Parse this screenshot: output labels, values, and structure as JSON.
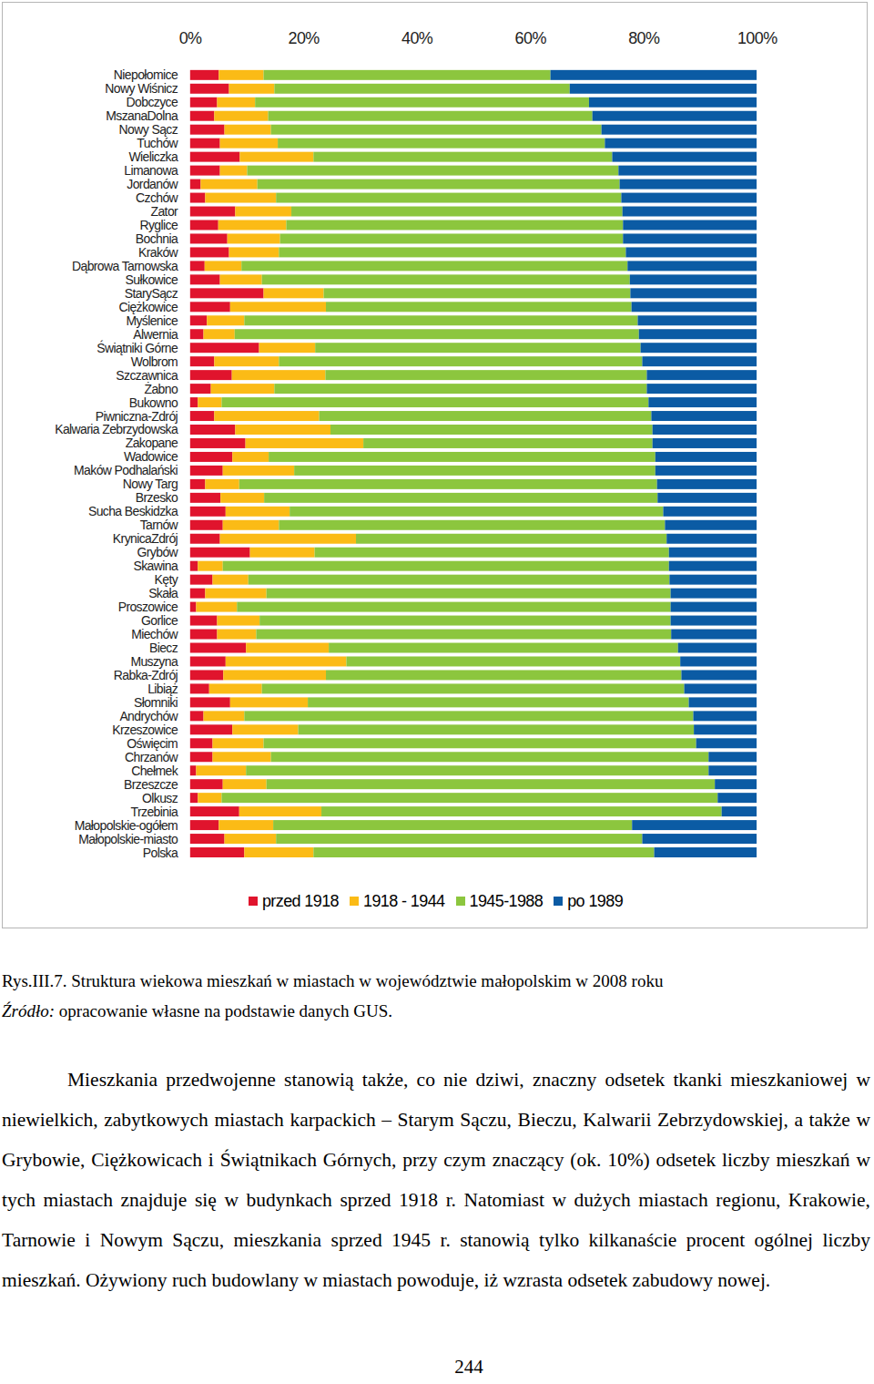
{
  "chart_data": {
    "type": "bar",
    "orientation": "horizontal",
    "stacked": true,
    "legend": "bottom",
    "xlim": [
      0,
      100
    ],
    "xticks": [
      {
        "value": 0,
        "label": "0%"
      },
      {
        "value": 20,
        "label": "20%"
      },
      {
        "value": 40,
        "label": "40%"
      },
      {
        "value": 60,
        "label": "60%"
      },
      {
        "value": 80,
        "label": "80%"
      },
      {
        "value": 100,
        "label": "100%"
      }
    ],
    "categories": [
      "Niepołomice",
      "Nowy Wiśnicz",
      "Dobczyce",
      "MszanaDolna",
      "Nowy Sącz",
      "Tuchów",
      "Wieliczka",
      "Limanowa",
      "Jordanów",
      "Czchów",
      "Zator",
      "Ryglice",
      "Bochnia",
      "Kraków",
      "Dąbrowa Tarnowska",
      "Sułkowice",
      "StarySącz",
      "Ciężkowice",
      "Myślenice",
      "Alwernia",
      "Świątniki Górne",
      "Wolbrom",
      "Szczawnica",
      "Żabno",
      "Bukowno",
      "Piwniczna-Zdrój",
      "Kalwaria Zebrzydowska",
      "Zakopane",
      "Wadowice",
      "Maków Podhalański",
      "Nowy Targ",
      "Brzesko",
      "Sucha Beskidzka",
      "Tarnów",
      "KrynicaZdrój",
      "Grybów",
      "Skawina",
      "Kęty",
      "Skała",
      "Proszowice",
      "Gorlice",
      "Miechów",
      "Biecz",
      "Muszyna",
      "Rabka-Zdrój",
      "Libiąż",
      "Słomniki",
      "Andrychów",
      "Krzeszowice",
      "Oświęcim",
      "Chrzanów",
      "Chełmek",
      "Brzeszcze",
      "Olkusz",
      "Trzebinia",
      "Małopolskie-ogółem",
      "Małopolskie-miasto",
      "Polska"
    ],
    "series": [
      {
        "name": "przed 1918",
        "color": "#e0142d",
        "values": [
          5.1,
          6.9,
          4.8,
          4.3,
          6.1,
          5.3,
          8.8,
          5.3,
          1.9,
          2.7,
          8.0,
          5.0,
          6.6,
          6.9,
          2.6,
          5.3,
          13.0,
          7.1,
          3.0,
          2.4,
          12.2,
          4.3,
          7.4,
          3.7,
          1.4,
          4.3,
          8.0,
          9.8,
          7.5,
          5.8,
          2.7,
          5.4,
          6.3,
          5.8,
          5.3,
          10.6,
          1.4,
          4.0,
          2.7,
          1.1,
          4.8,
          4.8,
          9.9,
          6.3,
          5.9,
          3.4,
          7.1,
          2.4,
          7.5,
          4.0,
          4.0,
          1.1,
          5.8,
          1.4,
          8.7,
          5.1,
          6.1,
          9.6
        ]
      },
      {
        "name": "1918 - 1944",
        "color": "#fbbb16",
        "values": [
          7.9,
          8.0,
          6.7,
          9.5,
          8.2,
          10.2,
          13.0,
          4.8,
          10.0,
          12.5,
          9.9,
          12.0,
          9.3,
          8.8,
          6.5,
          7.4,
          10.6,
          16.9,
          6.6,
          5.5,
          9.9,
          11.4,
          16.5,
          11.2,
          4.2,
          18.5,
          16.8,
          20.8,
          6.4,
          12.6,
          6.0,
          7.7,
          11.3,
          9.9,
          24.0,
          11.4,
          4.4,
          6.3,
          10.8,
          7.2,
          7.5,
          6.9,
          14.6,
          21.3,
          18.1,
          9.3,
          13.7,
          7.2,
          11.6,
          9.0,
          10.3,
          8.8,
          7.7,
          4.2,
          14.5,
          9.6,
          9.1,
          12.2
        ]
      },
      {
        "name": "1945-1988",
        "color": "#8cc63e",
        "values": [
          50.6,
          52.1,
          58.9,
          57.2,
          58.3,
          57.7,
          52.7,
          65.5,
          63.9,
          60.9,
          58.4,
          59.4,
          60.5,
          61.2,
          68.1,
          64.9,
          54.1,
          53.9,
          69.4,
          71.3,
          57.4,
          64.1,
          56.7,
          65.7,
          75.3,
          58.6,
          56.8,
          51.0,
          68.2,
          63.7,
          73.7,
          69.4,
          65.9,
          68.1,
          54.8,
          62.5,
          78.7,
          74.3,
          71.3,
          76.5,
          72.5,
          73.2,
          61.6,
          58.9,
          62.7,
          74.5,
          67.2,
          79.2,
          69.8,
          76.3,
          77.2,
          81.6,
          79.1,
          87.5,
          70.6,
          63.3,
          64.6,
          60.1
        ]
      },
      {
        "name": "po 1989",
        "color": "#0b5ba4",
        "values": [
          36.4,
          33.0,
          29.6,
          29.0,
          27.4,
          26.8,
          25.5,
          24.4,
          24.2,
          23.9,
          23.7,
          23.6,
          23.6,
          23.1,
          22.8,
          22.4,
          22.3,
          22.1,
          21.0,
          20.8,
          20.5,
          20.2,
          19.4,
          19.4,
          19.1,
          18.6,
          18.4,
          18.4,
          17.9,
          17.9,
          17.6,
          17.5,
          16.5,
          16.2,
          15.9,
          15.5,
          15.5,
          15.4,
          15.2,
          15.2,
          15.2,
          15.1,
          13.9,
          13.5,
          13.3,
          12.8,
          12.0,
          11.2,
          11.1,
          10.7,
          8.5,
          8.5,
          7.4,
          6.9,
          6.2,
          22.0,
          20.2,
          18.1
        ]
      }
    ]
  },
  "document": {
    "caption": "Rys.III.7. Struktura wiekowa mieszkań w miastach w województwie małopolskim w 2008 roku",
    "source_label": "Źródło:",
    "source_text": " opracowanie własne na podstawie danych GUS.",
    "paragraph": "Mieszkania przedwojenne stanowią także, co nie dziwi, znaczny odsetek tkanki mieszkaniowej w niewielkich, zabytkowych miastach karpackich – Starym Sączu, Bieczu, Kalwarii Zebrzydowskiej, a także w Grybowie, Ciężkowicach i Świątnikach Górnych, przy czym znaczący (ok. 10%) odsetek liczby mieszkań w tych miastach znajduje się w budynkach sprzed 1918 r. Natomiast w dużych miastach regionu, Krakowie, Tarnowie i Nowym Sączu, mieszkania sprzed 1945 r. stanowią tylko kilkanaście procent ogólnej liczby mieszkań. Ożywiony ruch budowlany w miastach powoduje, iż wzrasta odsetek zabudowy nowej.",
    "page_number": "244"
  }
}
